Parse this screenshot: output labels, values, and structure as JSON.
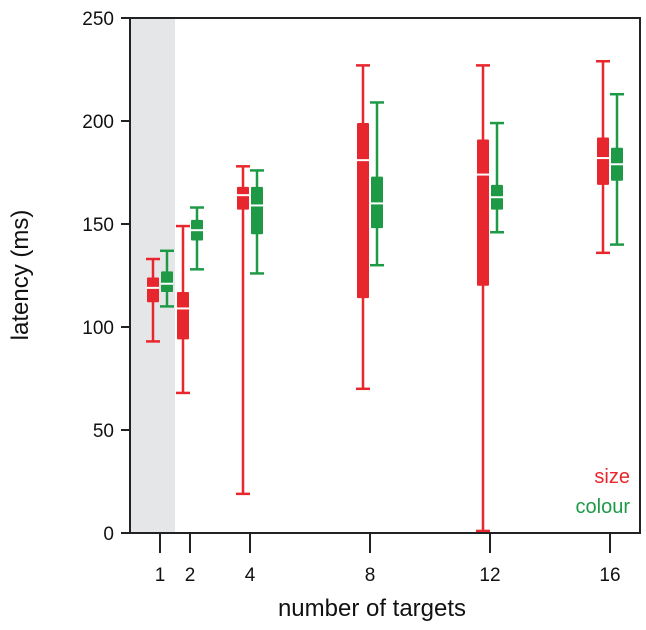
{
  "chart_data": {
    "type": "boxplot",
    "xlabel": "number of targets",
    "ylabel": "latency (ms)",
    "ylim": [
      0,
      250
    ],
    "yticks": [
      0,
      50,
      100,
      150,
      200,
      250
    ],
    "categories": [
      "1",
      "2",
      "4",
      "8",
      "12",
      "16"
    ],
    "x_positions": [
      1,
      2,
      4,
      8,
      12,
      16
    ],
    "xlim": [
      0,
      17
    ],
    "shaded_region": {
      "from": 0,
      "to": 1.5,
      "color": "#e5e6e8"
    },
    "legend": {
      "position": "bottom-right"
    },
    "series": [
      {
        "name": "size",
        "color": "#e8262d",
        "boxes": [
          {
            "x": 1,
            "whisker_low": 93,
            "q1": 112,
            "median": 119,
            "q3": 124,
            "whisker_high": 133
          },
          {
            "x": 2,
            "whisker_low": 68,
            "q1": 94,
            "median": 109,
            "q3": 117,
            "whisker_high": 149
          },
          {
            "x": 4,
            "whisker_low": 19,
            "q1": 157,
            "median": 164,
            "q3": 168,
            "whisker_high": 178
          },
          {
            "x": 8,
            "whisker_low": 70,
            "q1": 114,
            "median": 181,
            "q3": 199,
            "whisker_high": 227
          },
          {
            "x": 12,
            "whisker_low": 1,
            "q1": 120,
            "median": 174,
            "q3": 191,
            "whisker_high": 227
          },
          {
            "x": 16,
            "whisker_low": 136,
            "q1": 169,
            "median": 182,
            "q3": 192,
            "whisker_high": 229
          }
        ]
      },
      {
        "name": "colour",
        "color": "#1e9a47",
        "boxes": [
          {
            "x": 1,
            "whisker_low": 110,
            "q1": 117,
            "median": 121,
            "q3": 127,
            "whisker_high": 137
          },
          {
            "x": 2,
            "whisker_low": 128,
            "q1": 142,
            "median": 147,
            "q3": 152,
            "whisker_high": 158
          },
          {
            "x": 4,
            "whisker_low": 126,
            "q1": 145,
            "median": 159,
            "q3": 168,
            "whisker_high": 176
          },
          {
            "x": 8,
            "whisker_low": 130,
            "q1": 148,
            "median": 160,
            "q3": 173,
            "whisker_high": 209
          },
          {
            "x": 12,
            "whisker_low": 146,
            "q1": 157,
            "median": 163,
            "q3": 169,
            "whisker_high": 199
          },
          {
            "x": 16,
            "whisker_low": 140,
            "q1": 171,
            "median": 179,
            "q3": 187,
            "whisker_high": 213
          }
        ]
      }
    ]
  }
}
